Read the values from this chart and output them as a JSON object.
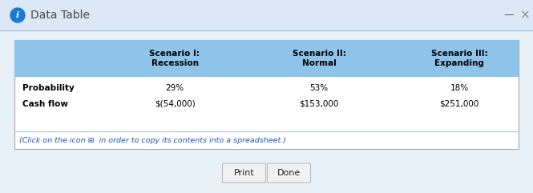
{
  "title": "Data Table",
  "bg_color": "#e8f1f8",
  "title_bar_color": "#dce8f5",
  "separator_color": "#adc8e0",
  "header_bg": "#8ec4ea",
  "table_border_color": "#aaaaaa",
  "col_headers": [
    "",
    "Scenario I:\nRecession",
    "Scenario II:\nNormal",
    "Scenario III:\nExpanding"
  ],
  "row_labels": [
    "Probability",
    "Cash flow"
  ],
  "row1_values": [
    "29%",
    "53%",
    "18%"
  ],
  "row2_values": [
    "$(54,000)",
    "$153,000",
    "$251,000"
  ],
  "footer_text": "(Click on the icon ⊞  in order to copy its contents into a spreadsheet.)",
  "button1": "Print",
  "button2": "Done",
  "title_color": "#4a4a4a",
  "row_label_color": "#000000",
  "value_color": "#000000",
  "footer_color": "#2255bb",
  "info_icon_color": "#1a7ad4",
  "header_text_color": "#000000",
  "minimize_color": "#555555",
  "close_color": "#888888",
  "button_face": "#f2f2f2",
  "button_edge": "#bbbbbb"
}
